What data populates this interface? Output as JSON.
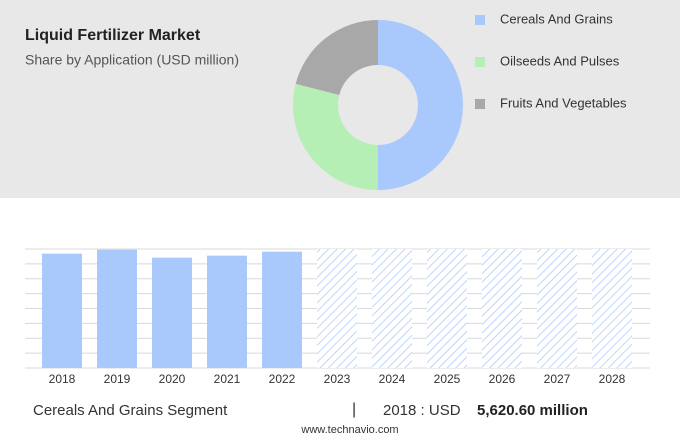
{
  "chart_data": [
    {
      "type": "donut",
      "title": "Liquid Fertilizer Market",
      "subtitle": "Share by Application (USD million)",
      "categories": [
        "Cereals And Grains",
        "Oilseeds And Pulses",
        "Fruits And Vegetables"
      ],
      "values": [
        50,
        29,
        21
      ],
      "colors": [
        "#a9c8fb",
        "#b5efb5",
        "#a8a8a8"
      ]
    },
    {
      "type": "bar",
      "categories": [
        "2018",
        "2019",
        "2020",
        "2021",
        "2022",
        "2023",
        "2024",
        "2025",
        "2026",
        "2027",
        "2028"
      ],
      "values": [
        5620.6,
        5816,
        5425,
        5523,
        5718,
        null,
        null,
        null,
        null,
        null,
        null
      ],
      "color": "#a9c8fb",
      "ylim": [
        0,
        5850
      ]
    }
  ],
  "footer": {
    "segment": "Cereals And Grains Segment",
    "separator": "|",
    "year_label": "2018 : USD",
    "value_label": "5,620.60 million",
    "source": "www.technavio.com"
  }
}
